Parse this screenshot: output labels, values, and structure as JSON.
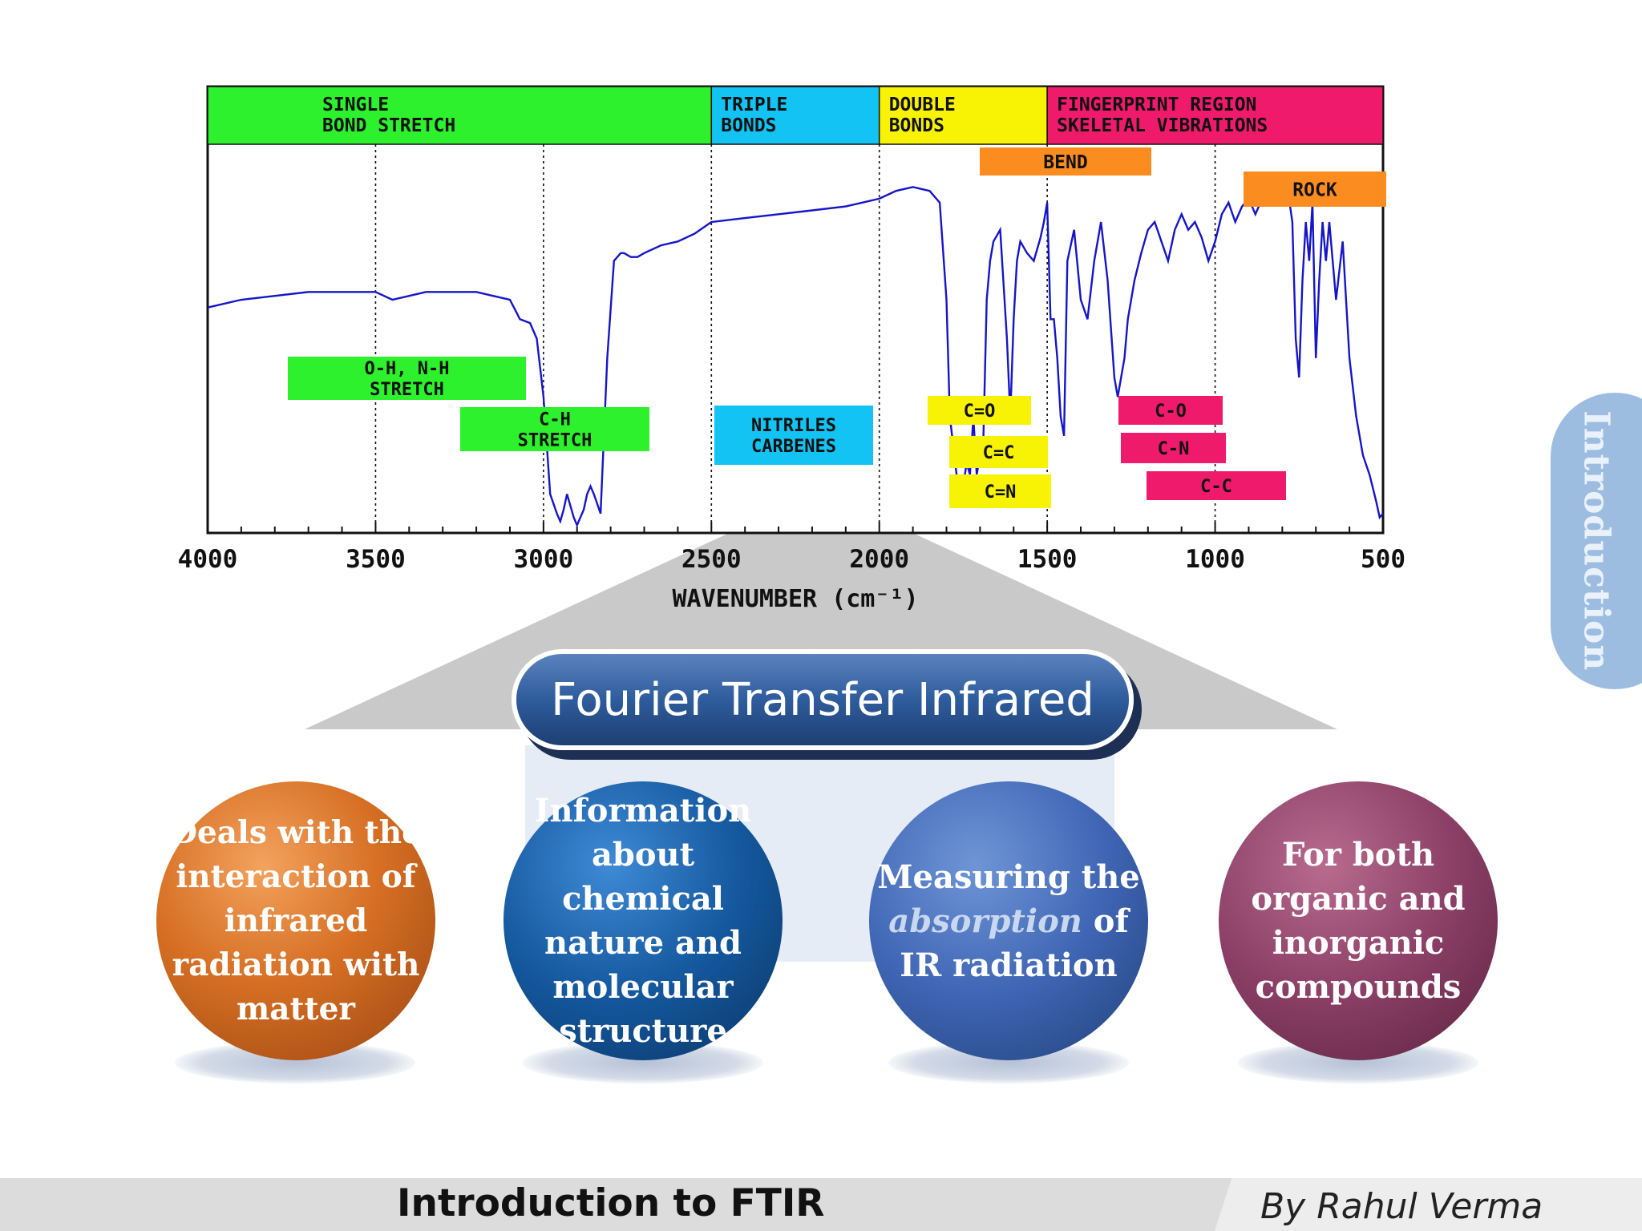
{
  "chart_data": {
    "type": "line",
    "xlabel": "WAVENUMBER (cm⁻¹)",
    "xlim": [
      4000,
      500
    ],
    "x_ticks": [
      "4000",
      "3500",
      "3000",
      "2500",
      "2000",
      "1500",
      "1000",
      "500"
    ],
    "gridlines_x": [
      3500,
      3000,
      2500,
      2000,
      1500,
      1000
    ],
    "ylim": [
      0,
      100
    ],
    "series": [
      {
        "color": "#1515c8",
        "x": [
          4000,
          3900,
          3800,
          3700,
          3600,
          3500,
          3450,
          3400,
          3350,
          3300,
          3250,
          3200,
          3150,
          3100,
          3070,
          3040,
          3020,
          3000,
          2980,
          2960,
          2950,
          2940,
          2930,
          2910,
          2900,
          2880,
          2870,
          2860,
          2850,
          2830,
          2810,
          2790,
          2770,
          2760,
          2740,
          2720,
          2700,
          2650,
          2600,
          2550,
          2500,
          2400,
          2300,
          2200,
          2100,
          2000,
          1950,
          1900,
          1850,
          1820,
          1800,
          1790,
          1770,
          1750,
          1740,
          1730,
          1720,
          1710,
          1700,
          1690,
          1680,
          1670,
          1660,
          1640,
          1620,
          1610,
          1600,
          1590,
          1580,
          1560,
          1540,
          1520,
          1510,
          1500,
          1490,
          1480,
          1470,
          1460,
          1450,
          1440,
          1420,
          1400,
          1380,
          1360,
          1340,
          1320,
          1300,
          1290,
          1280,
          1270,
          1260,
          1240,
          1220,
          1200,
          1180,
          1160,
          1140,
          1120,
          1100,
          1080,
          1060,
          1040,
          1020,
          1000,
          980,
          960,
          940,
          920,
          900,
          880,
          860,
          840,
          820,
          800,
          780,
          770,
          760,
          750,
          740,
          730,
          720,
          710,
          700,
          690,
          680,
          670,
          660,
          640,
          620,
          600,
          580,
          560,
          540,
          520,
          510,
          500
        ],
        "y": [
          58,
          60,
          61,
          62,
          62,
          62,
          60,
          61,
          62,
          62,
          62,
          62,
          61,
          60,
          55,
          54,
          50,
          35,
          10,
          5,
          3,
          6,
          10,
          4,
          2,
          6,
          10,
          12,
          10,
          5,
          45,
          70,
          72,
          72,
          71,
          71,
          72,
          74,
          75,
          77,
          80,
          81,
          82,
          83,
          84,
          86,
          88,
          89,
          88,
          85,
          60,
          30,
          15,
          12,
          18,
          15,
          30,
          15,
          20,
          25,
          60,
          70,
          75,
          78,
          50,
          30,
          55,
          70,
          75,
          72,
          70,
          76,
          80,
          85,
          55,
          55,
          45,
          30,
          25,
          70,
          78,
          60,
          55,
          70,
          80,
          65,
          40,
          35,
          40,
          45,
          55,
          65,
          72,
          78,
          80,
          75,
          70,
          78,
          82,
          78,
          80,
          76,
          70,
          75,
          82,
          85,
          80,
          84,
          86,
          82,
          86,
          88,
          90,
          88,
          86,
          80,
          50,
          40,
          65,
          80,
          70,
          85,
          45,
          65,
          80,
          70,
          80,
          60,
          75,
          45,
          30,
          20,
          15,
          8,
          4,
          5
        ]
      }
    ],
    "region_labels": [
      {
        "lines": [
          "SINGLE",
          "BOND STRETCH"
        ],
        "from": 4000,
        "to": 2500,
        "color": "#2cf12c"
      },
      {
        "lines": [
          "TRIPLE",
          "BONDS"
        ],
        "from": 2500,
        "to": 2000,
        "color": "#13c3f3"
      },
      {
        "lines": [
          "DOUBLE",
          "BONDS"
        ],
        "from": 2000,
        "to": 1500,
        "color": "#f8f205"
      },
      {
        "lines": [
          "FINGERPRINT REGION",
          "SKELETAL VIBRATIONS"
        ],
        "from": 1500,
        "to": 500,
        "color": "#f01a6c"
      }
    ],
    "annotations": [
      {
        "lines": [
          "BEND"
        ],
        "color": "#fb8c20"
      },
      {
        "lines": [
          "ROCK"
        ],
        "color": "#fb8c20"
      },
      {
        "lines": [
          "O-H, N-H",
          "STRETCH"
        ],
        "color": "#2cf12c"
      },
      {
        "lines": [
          "C-H",
          "STRETCH"
        ],
        "color": "#2cf12c"
      },
      {
        "lines": [
          "NITRILES",
          "CARBENES"
        ],
        "color": "#13c3f3"
      },
      {
        "lines": [
          "C=O"
        ],
        "color": "#f8f205"
      },
      {
        "lines": [
          "C=C"
        ],
        "color": "#f8f205"
      },
      {
        "lines": [
          "C=N"
        ],
        "color": "#f8f205"
      },
      {
        "lines": [
          "C-O"
        ],
        "color": "#f01a6c"
      },
      {
        "lines": [
          "C-N"
        ],
        "color": "#f01a6c"
      },
      {
        "lines": [
          "C-C"
        ],
        "color": "#f01a6c"
      }
    ]
  },
  "banner": {
    "title": "Fourier Transfer Infrared"
  },
  "bubbles": [
    {
      "text": "Deals with the interaction of infrared radiation with matter",
      "color": "#d66f23"
    },
    {
      "text_before": "Information about chemical nature and molecular structure",
      "color": "#14589e"
    },
    {
      "text_before": "Measuring the",
      "emphasis": "absorption",
      "text_after": "of IR radiation",
      "color": "#3f66b4"
    },
    {
      "text": "For both organic and inorganic compounds",
      "color": "#8c3f66"
    }
  ],
  "side_tab": {
    "label": "Introduction"
  },
  "footer": {
    "title": "Introduction to FTIR",
    "author": "By Rahul Verma"
  }
}
